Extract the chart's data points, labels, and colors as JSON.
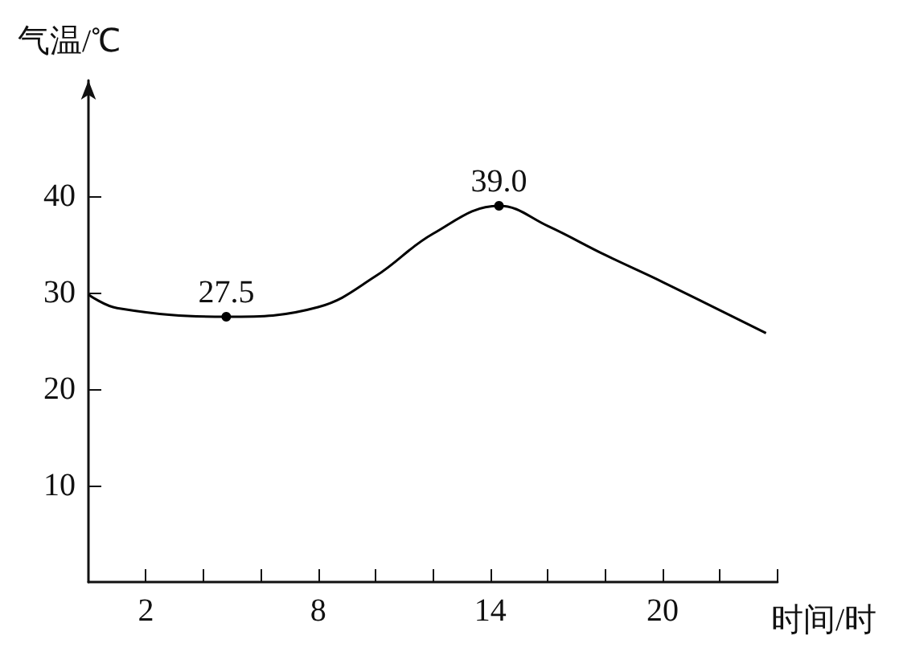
{
  "chart_data": {
    "type": "line",
    "xlabel": "时间/时",
    "ylabel": "气温/℃",
    "x": [
      0,
      1,
      4.8,
      8,
      10,
      12,
      14.3,
      16,
      18,
      20,
      23.6
    ],
    "series": [
      {
        "color": "#000000",
        "values": [
          29.8,
          28.4,
          27.5,
          28.5,
          31.7,
          36.1,
          39.0,
          36.9,
          33.9,
          31.1,
          25.8
        ],
        "value_labels": [
          null,
          null,
          "27.5",
          null,
          null,
          null,
          "39.0",
          null,
          null,
          null,
          null
        ]
      }
    ],
    "xlim": [
      0,
      24
    ],
    "xticks": [
      {
        "value": 2,
        "label": "2"
      },
      {
        "value": 4,
        "label": null
      },
      {
        "value": 6,
        "label": null
      },
      {
        "value": 8,
        "label": "8"
      },
      {
        "value": 10,
        "label": null
      },
      {
        "value": 12,
        "label": null
      },
      {
        "value": 14,
        "label": "14"
      },
      {
        "value": 16,
        "label": null
      },
      {
        "value": 18,
        "label": null
      },
      {
        "value": 20,
        "label": "20"
      },
      {
        "value": 22,
        "label": null
      },
      {
        "value": 24,
        "label": null
      }
    ],
    "ylim": [
      0,
      52
    ],
    "yticks": [
      10,
      20,
      30,
      40
    ],
    "grid": false
  }
}
